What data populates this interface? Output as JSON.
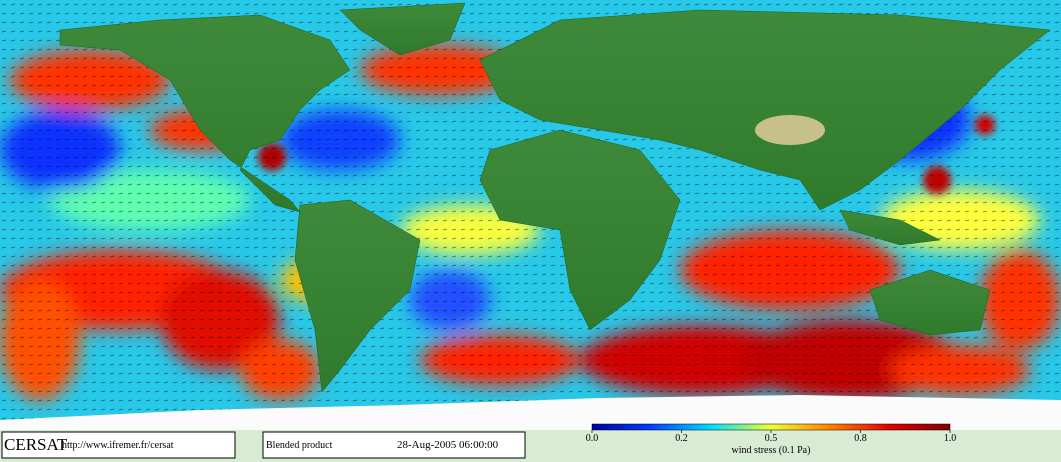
{
  "logo": "CERSAT",
  "url": "http://www.ifremer.fr/cersat",
  "product": "Blended product",
  "timestamp": "28-Aug-2005 06:00:00",
  "colorbar": {
    "label": "wind stress (0.1 Pa)",
    "ticks": [
      {
        "value": 0,
        "label": "0.0"
      },
      0.2,
      0.5,
      0.8,
      {
        "value": 1,
        "label": "1.0"
      }
    ],
    "colors": [
      "#0000a0",
      "#0040ff",
      "#00e0ff",
      "#f0ff30",
      "#ff8000",
      "#e00000",
      "#800000"
    ]
  }
}
